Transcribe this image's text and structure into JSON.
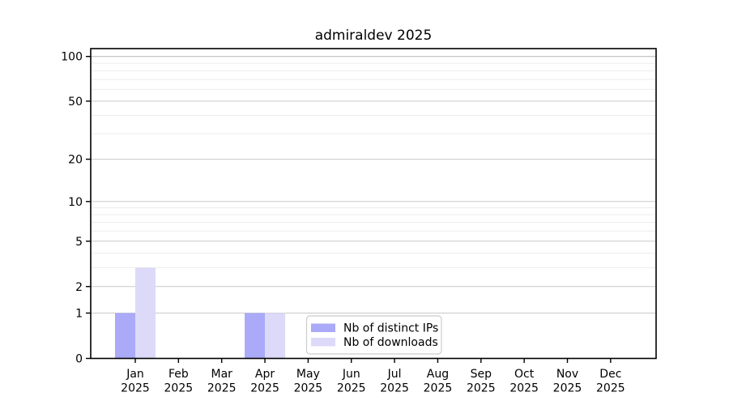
{
  "title": "admiraldev 2025",
  "chart_data": {
    "type": "bar",
    "title": "admiraldev 2025",
    "scale": "log10(1+y)",
    "year": "2025",
    "categories": [
      "Jan",
      "Feb",
      "Mar",
      "Apr",
      "May",
      "Jun",
      "Jul",
      "Aug",
      "Sep",
      "Oct",
      "Nov",
      "Dec"
    ],
    "series": [
      {
        "name": "Nb of distinct IPs",
        "color": "#aaaaf8",
        "values": [
          1,
          0,
          0,
          1,
          0,
          0,
          0,
          0,
          0,
          0,
          0,
          0
        ]
      },
      {
        "name": "Nb of downloads",
        "color": "#dcdaf8",
        "values": [
          3,
          0,
          0,
          1,
          0,
          0,
          0,
          0,
          0,
          0,
          0,
          0
        ]
      }
    ],
    "yticks_major": [
      0,
      1,
      2,
      5,
      10,
      20,
      50,
      100
    ],
    "yticks_minor": [
      3,
      4,
      6,
      7,
      8,
      9,
      30,
      40,
      60,
      70,
      80,
      90
    ],
    "ylim": [
      0,
      113
    ],
    "grid": "horizontal",
    "legend_position": "inside-bottom-center"
  },
  "colors": {
    "background": "#ffffff",
    "spine": "#000000",
    "grid_major": "#c9c9c9",
    "grid_major_top": "#b5b5b5",
    "grid_minor": "#ececec",
    "tick_text": "#000000",
    "legend_border": "#cccccc",
    "legend_background": "#ffffff",
    "bar_distinct_ips": "#aaaaf8",
    "bar_downloads": "#dcdaf8"
  }
}
